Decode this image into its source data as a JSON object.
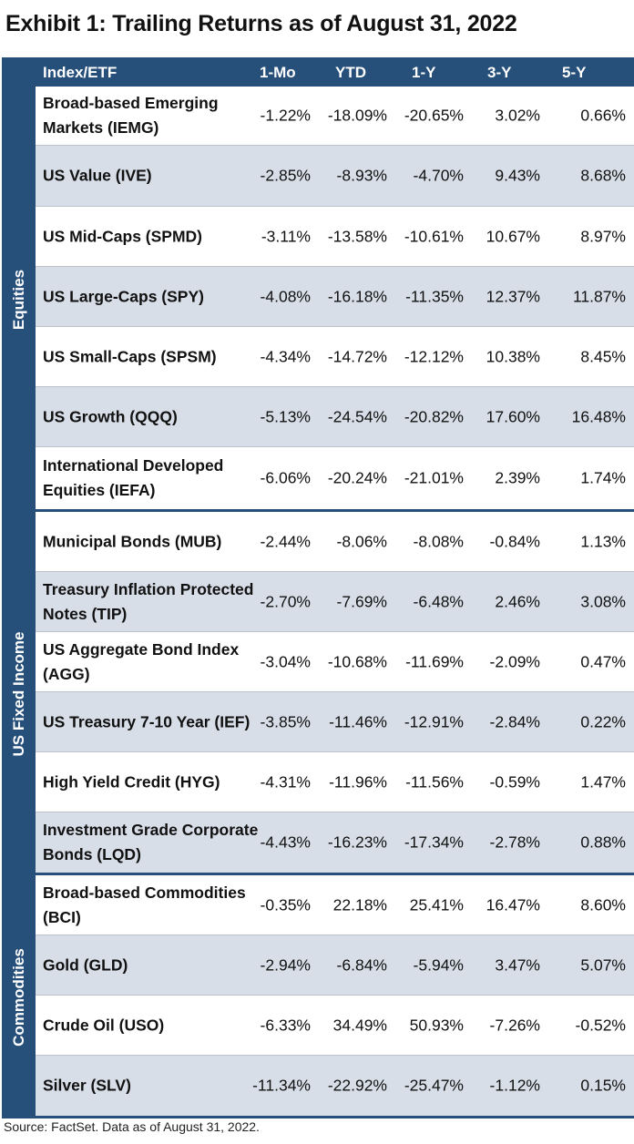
{
  "title": "Exhibit 1: Trailing Returns as of August 31, 2022",
  "footnote": "Source: FactSet. Data as of August 31, 2022.",
  "colors": {
    "header_bg": "#264f7a",
    "shaded_row": "#d7dee8",
    "text": "#111111"
  },
  "chart_data": {
    "type": "table",
    "columns": [
      "Index/ETF",
      "1-Mo",
      "YTD",
      "1-Y",
      "3-Y",
      "5-Y"
    ],
    "sections": [
      {
        "label": "Equities",
        "rows": [
          {
            "name": "Broad-based Emerging Markets (IEMG)",
            "values": [
              "-1.22%",
              "-18.09%",
              "-20.65%",
              "3.02%",
              "0.66%"
            ]
          },
          {
            "name": "US Value (IVE)",
            "values": [
              "-2.85%",
              "-8.93%",
              "-4.70%",
              "9.43%",
              "8.68%"
            ]
          },
          {
            "name": "US Mid-Caps (SPMD)",
            "values": [
              "-3.11%",
              "-13.58%",
              "-10.61%",
              "10.67%",
              "8.97%"
            ]
          },
          {
            "name": "US Large-Caps (SPY)",
            "values": [
              "-4.08%",
              "-16.18%",
              "-11.35%",
              "12.37%",
              "11.87%"
            ]
          },
          {
            "name": "US Small-Caps (SPSM)",
            "values": [
              "-4.34%",
              "-14.72%",
              "-12.12%",
              "10.38%",
              "8.45%"
            ]
          },
          {
            "name": "US Growth (QQQ)",
            "values": [
              "-5.13%",
              "-24.54%",
              "-20.82%",
              "17.60%",
              "16.48%"
            ]
          },
          {
            "name": "International Developed Equities (IEFA)",
            "values": [
              "-6.06%",
              "-20.24%",
              "-21.01%",
              "2.39%",
              "1.74%"
            ]
          }
        ]
      },
      {
        "label": "US Fixed Income",
        "rows": [
          {
            "name": "Municipal Bonds (MUB)",
            "values": [
              "-2.44%",
              "-8.06%",
              "-8.08%",
              "-0.84%",
              "1.13%"
            ]
          },
          {
            "name": "Treasury Inflation Protected Notes (TIP)",
            "values": [
              "-2.70%",
              "-7.69%",
              "-6.48%",
              "2.46%",
              "3.08%"
            ]
          },
          {
            "name": "US Aggregate Bond Index (AGG)",
            "values": [
              "-3.04%",
              "-10.68%",
              "-11.69%",
              "-2.09%",
              "0.47%"
            ]
          },
          {
            "name": "US Treasury 7-10 Year (IEF)",
            "values": [
              "-3.85%",
              "-11.46%",
              "-12.91%",
              "-2.84%",
              "0.22%"
            ]
          },
          {
            "name": "High Yield Credit (HYG)",
            "values": [
              "-4.31%",
              "-11.96%",
              "-11.56%",
              "-0.59%",
              "1.47%"
            ]
          },
          {
            "name": "Investment Grade Corporate Bonds (LQD)",
            "values": [
              "-4.43%",
              "-16.23%",
              "-17.34%",
              "-2.78%",
              "0.88%"
            ]
          }
        ]
      },
      {
        "label": "Commodities",
        "rows": [
          {
            "name": "Broad-based Commodities (BCI)",
            "values": [
              "-0.35%",
              "22.18%",
              "25.41%",
              "16.47%",
              "8.60%"
            ]
          },
          {
            "name": "Gold (GLD)",
            "values": [
              "-2.94%",
              "-6.84%",
              "-5.94%",
              "3.47%",
              "5.07%"
            ]
          },
          {
            "name": "Crude Oil (USO)",
            "values": [
              "-6.33%",
              "34.49%",
              "50.93%",
              "-7.26%",
              "-0.52%"
            ]
          },
          {
            "name": "Silver (SLV)",
            "values": [
              "-11.34%",
              "-22.92%",
              "-25.47%",
              "-1.12%",
              "0.15%"
            ]
          }
        ]
      }
    ]
  }
}
